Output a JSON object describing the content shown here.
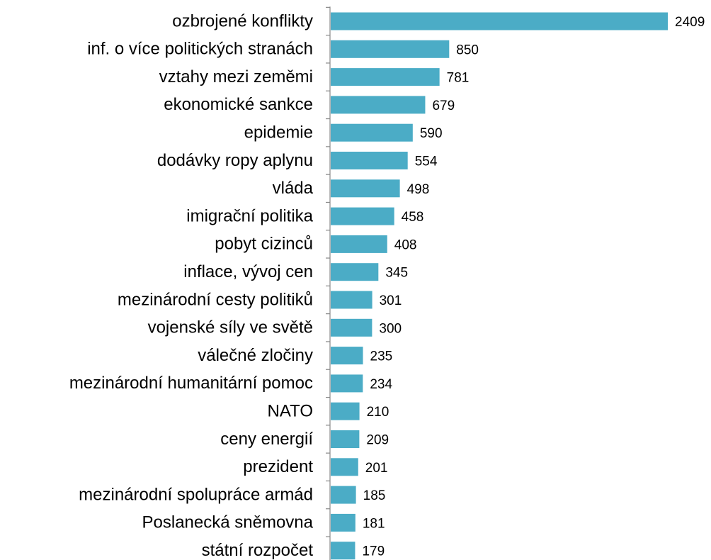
{
  "chart_data": {
    "type": "bar",
    "orientation": "horizontal",
    "color": "#4bacc6",
    "categories": [
      "ozbrojené konflikty",
      "inf. o více politických stranách",
      "vztahy mezi zeměmi",
      "ekonomické sankce",
      "epidemie",
      "dodávky ropy aplynu",
      "vláda",
      "imigrační politika",
      "pobyt cizinců",
      "inflace, vývoj cen",
      "mezinárodní cesty politiků",
      "vojenské síly ve světě",
      "válečné zločiny",
      "mezinárodní humanitární pomoc",
      "NATO",
      "ceny energií",
      "prezident",
      "mezinárodní spolupráce armád",
      "Poslanecká sněmovna",
      "státní rozpočet"
    ],
    "values": [
      2409,
      850,
      781,
      679,
      590,
      554,
      498,
      458,
      408,
      345,
      301,
      300,
      235,
      234,
      210,
      209,
      201,
      185,
      181,
      179
    ]
  }
}
